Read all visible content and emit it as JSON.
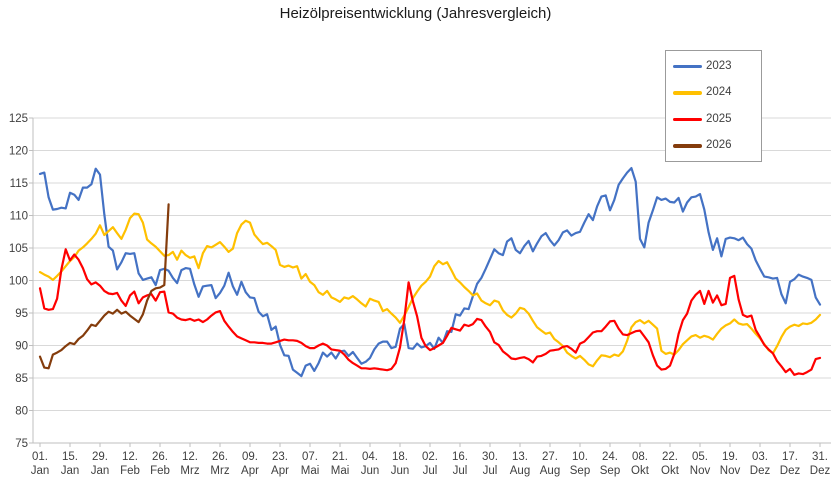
{
  "chart_data": {
    "type": "line",
    "title": "Heizölpreisentwicklung (Jahresvergleich)",
    "grid": true,
    "background": "#FFFFFF",
    "colors": {
      "gridline": "#D9D9D9",
      "axis": "#BFBFBF",
      "label": "#404040",
      "title": "#1A1A1A"
    },
    "y_axis": {
      "min": 75,
      "max": 125,
      "tick_step": 5,
      "ticks": [
        75,
        80,
        85,
        90,
        95,
        100,
        105,
        110,
        115,
        120,
        125
      ]
    },
    "x_axis": {
      "unit": "day_of_year",
      "range": [
        1,
        365
      ],
      "tick_labels": [
        {
          "day": 1,
          "top": "01.",
          "bottom": "Jan"
        },
        {
          "day": 15,
          "top": "15.",
          "bottom": "Jan"
        },
        {
          "day": 29,
          "top": "29.",
          "bottom": "Jan"
        },
        {
          "day": 43,
          "top": "12.",
          "bottom": "Feb"
        },
        {
          "day": 57,
          "top": "26.",
          "bottom": "Feb"
        },
        {
          "day": 71,
          "top": "12.",
          "bottom": "Mrz"
        },
        {
          "day": 85,
          "top": "26.",
          "bottom": "Mrz"
        },
        {
          "day": 99,
          "top": "09.",
          "bottom": "Apr"
        },
        {
          "day": 113,
          "top": "23.",
          "bottom": "Apr"
        },
        {
          "day": 127,
          "top": "07.",
          "bottom": "Mai"
        },
        {
          "day": 141,
          "top": "21.",
          "bottom": "Mai"
        },
        {
          "day": 155,
          "top": "04.",
          "bottom": "Jun"
        },
        {
          "day": 169,
          "top": "18.",
          "bottom": "Jun"
        },
        {
          "day": 183,
          "top": "02.",
          "bottom": "Jul"
        },
        {
          "day": 197,
          "top": "16.",
          "bottom": "Jul"
        },
        {
          "day": 211,
          "top": "30.",
          "bottom": "Jul"
        },
        {
          "day": 225,
          "top": "13.",
          "bottom": "Aug"
        },
        {
          "day": 239,
          "top": "27.",
          "bottom": "Aug"
        },
        {
          "day": 253,
          "top": "10.",
          "bottom": "Sep"
        },
        {
          "day": 267,
          "top": "24.",
          "bottom": "Sep"
        },
        {
          "day": 281,
          "top": "08.",
          "bottom": "Okt"
        },
        {
          "day": 295,
          "top": "22.",
          "bottom": "Okt"
        },
        {
          "day": 309,
          "top": "05.",
          "bottom": "Nov"
        },
        {
          "day": 323,
          "top": "19.",
          "bottom": "Nov"
        },
        {
          "day": 337,
          "top": "03.",
          "bottom": "Dez"
        },
        {
          "day": 351,
          "top": "17.",
          "bottom": "Dez"
        },
        {
          "day": 365,
          "top": "31.",
          "bottom": "Dez"
        }
      ]
    },
    "legend": {
      "position": "top-right",
      "entries": [
        {
          "label": "2023",
          "color": "#4472C4"
        },
        {
          "label": "2024",
          "color": "#FFC000"
        },
        {
          "label": "2025",
          "color": "#FF0000"
        },
        {
          "label": "2026",
          "color": "#843C0C"
        }
      ]
    },
    "series": [
      {
        "name": "2023",
        "color": "#4472C4",
        "start_day": 1,
        "day_step": 2,
        "values": [
          116.4,
          116.6,
          112.8,
          110.9,
          111,
          111.2,
          111.1,
          113.5,
          113.2,
          112.4,
          114.3,
          114.3,
          114.8,
          117.2,
          116.3,
          110.2,
          105.2,
          104.6,
          101.7,
          102.8,
          104.2,
          104.1,
          104.2,
          101.1,
          100.1,
          100.3,
          100.5,
          99.3,
          101.6,
          101.8,
          101.5,
          100.4,
          99.6,
          101.6,
          101.9,
          101.8,
          99.4,
          97.5,
          99.1,
          99.2,
          99.3,
          97.3,
          98.1,
          99.2,
          101.2,
          99.1,
          97.8,
          99.8,
          98.2,
          97.4,
          97.3,
          95.2,
          94.5,
          94.8,
          92.4,
          92.9,
          90.1,
          88.5,
          88.4,
          86.3,
          85.8,
          85.3,
          86.9,
          87.2,
          86.1,
          87.3,
          88.9,
          88.3,
          88.9,
          88,
          89.1,
          89.2,
          88.4,
          89,
          88.1,
          87.2,
          87.5,
          88.1,
          89.4,
          90.3,
          90.6,
          90.6,
          89.6,
          89.8,
          92.6,
          93.3,
          89.6,
          89.5,
          90.3,
          89.7,
          89.9,
          90.4,
          89.5,
          91.2,
          90.4,
          92.2,
          92.1,
          94.8,
          94.6,
          95.7,
          95.6,
          97.6,
          99.5,
          100.4,
          101.8,
          103.3,
          104.8,
          104.2,
          103.9,
          106,
          106.5,
          104.7,
          104.2,
          105.3,
          106.1,
          104.5,
          105.7,
          106.8,
          107.3,
          106.2,
          105.4,
          106.2,
          107.4,
          107.7,
          106.9,
          107.3,
          107.5,
          108.9,
          110.2,
          109.3,
          111.4,
          112.9,
          113.1,
          110.8,
          112.4,
          114.7,
          115.7,
          116.6,
          117.3,
          115.2,
          106.4,
          105.1,
          108.9,
          110.8,
          112.8,
          112.4,
          112.6,
          112.1,
          112,
          112.7,
          110.6,
          112,
          112.8,
          112.9,
          113.3,
          110.9,
          107.4,
          104.7,
          106.5,
          103.7,
          106.4,
          106.6,
          106.5,
          106.2,
          106.6,
          105.6,
          104.9,
          103.1,
          101.8,
          100.6,
          100.5,
          100.3,
          100.4,
          97.9,
          96.5,
          99.8,
          100.2,
          100.9,
          100.6,
          100.4,
          100.1,
          97.4,
          96.3
        ]
      },
      {
        "name": "2024",
        "color": "#FFC000",
        "start_day": 1,
        "day_step": 2,
        "values": [
          101.3,
          100.9,
          100.6,
          100.1,
          100.7,
          101.4,
          102.2,
          103,
          103.6,
          104.6,
          105.1,
          105.7,
          106.4,
          107.2,
          108.5,
          107,
          107.6,
          108.2,
          107.3,
          106.4,
          107.8,
          109.6,
          110.3,
          110.2,
          108.9,
          106.3,
          105.7,
          105.2,
          104.5,
          103.8,
          103.9,
          104.4,
          103.2,
          104.6,
          103.9,
          103.5,
          103.7,
          101.9,
          104.2,
          105.3,
          105.1,
          105.5,
          105.9,
          105.2,
          104.4,
          104.9,
          107.3,
          108.6,
          109.2,
          108.9,
          107.1,
          106.3,
          105.6,
          105.8,
          105.3,
          104.7,
          102.4,
          102.1,
          102.3,
          102,
          102.2,
          100.3,
          101,
          99.8,
          99.3,
          98.2,
          97.8,
          98.4,
          97.4,
          97.1,
          96.7,
          97.4,
          97.2,
          97.6,
          97.1,
          96.5,
          96,
          97.2,
          96.9,
          96.7,
          95.3,
          95.6,
          94.9,
          94.3,
          93.5,
          94.6,
          95.9,
          97.3,
          98.3,
          99.2,
          99.8,
          100.6,
          102.2,
          103,
          102.5,
          102.8,
          101.6,
          100.3,
          99.7,
          99,
          98.4,
          97.7,
          98,
          96.9,
          96.5,
          96.2,
          96.9,
          96.7,
          95.4,
          94.7,
          94.3,
          94.9,
          95.8,
          95.6,
          94.9,
          93.8,
          92.8,
          92.3,
          91.8,
          92,
          91,
          90.5,
          89.9,
          88.9,
          88.4,
          88,
          88.4,
          87.8,
          87.1,
          86.8,
          87.7,
          88.5,
          88.4,
          88.2,
          88.6,
          88.4,
          89.1,
          90.7,
          92.8,
          93.6,
          93.9,
          93.4,
          93.8,
          93.2,
          92.6,
          89.2,
          88.7,
          88.9,
          88.6,
          89.3,
          90.2,
          90.8,
          91.4,
          91.6,
          91.2,
          91.5,
          91.3,
          90.9,
          91.8,
          92.6,
          93.1,
          93.4,
          94,
          93.4,
          93.2,
          93.3,
          92.6,
          91.8,
          91.1,
          90.2,
          89.3,
          88.8,
          89.9,
          91.3,
          92.4,
          92.9,
          93.2,
          93,
          93.4,
          93.3,
          93.5,
          94,
          94.7
        ]
      },
      {
        "name": "2025",
        "color": "#FF0000",
        "start_day": 1,
        "day_step": 2,
        "values": [
          98.8,
          95.7,
          95.5,
          95.6,
          97.2,
          101.7,
          104.8,
          103.1,
          104,
          103.2,
          101.9,
          100.2,
          99.4,
          99.7,
          99.2,
          98.4,
          98,
          97.9,
          98.1,
          96.9,
          96.1,
          97.7,
          98.3,
          96.5,
          97.4,
          97.7,
          97.9,
          96.9,
          98.2,
          98.3,
          95.1,
          94.9,
          94.3,
          94,
          93.9,
          94.1,
          93.8,
          94,
          93.6,
          94,
          94.6,
          95.1,
          95.3,
          93.8,
          92.9,
          92.1,
          91.4,
          91.1,
          90.8,
          90.5,
          90.5,
          90.4,
          90.4,
          90.3,
          90.3,
          90.5,
          90.7,
          90.9,
          90.8,
          90.8,
          90.7,
          90.4,
          89.9,
          89.6,
          89.6,
          90,
          90.3,
          90,
          89.4,
          89.3,
          89.2,
          88.6,
          87.8,
          87.3,
          86.9,
          86.5,
          86.5,
          86.4,
          86.5,
          86.4,
          86.3,
          86.2,
          86.4,
          87.3,
          89.7,
          94,
          99.7,
          96.8,
          94.5,
          91.2,
          89.9,
          89.3,
          89.6,
          90,
          90.4,
          91.5,
          92.7,
          92.5,
          92.3,
          93.2,
          93,
          93.3,
          94.1,
          93.9,
          92.9,
          92.1,
          90.5,
          90.1,
          89.1,
          88.6,
          88,
          87.9,
          88.1,
          88.2,
          87.9,
          87.4,
          88.3,
          88.4,
          88.7,
          89.2,
          89.3,
          89.4,
          89.8,
          89.9,
          89.5,
          88.9,
          90.3,
          90.6,
          91.3,
          92,
          92.2,
          92.2,
          92.9,
          93.7,
          93.8,
          92.6,
          91.7,
          91.6,
          91.9,
          92.2,
          92.3,
          91.4,
          90.5,
          88.5,
          86.9,
          86.3,
          86.4,
          86.9,
          88.7,
          91.8,
          93.9,
          94.9,
          96.9,
          97.8,
          98.4,
          96.4,
          98.4,
          96.6,
          97.7,
          96.2,
          96.4,
          100.4,
          100.7,
          97.1,
          94.7,
          94.4,
          94.6,
          92.4,
          91.3,
          90.1,
          89.4,
          88.8,
          87.6,
          86.8,
          85.9,
          86.4,
          85.5,
          85.7,
          85.6,
          85.9,
          86.3,
          87.9,
          88.1
        ]
      },
      {
        "name": "2026",
        "color": "#843C0C",
        "start_day": 1,
        "day_step": 2,
        "values": [
          88.3,
          86.6,
          86.5,
          88.6,
          88.9,
          89.3,
          89.9,
          90.4,
          90.2,
          91,
          91.5,
          92.3,
          93.2,
          93,
          93.8,
          94.6,
          95.2,
          94.9,
          95.5,
          94.9,
          95.2,
          94.6,
          94.1,
          93.6,
          94.8,
          96.9,
          98.4,
          98.8,
          98.9,
          99.3,
          111.7
        ]
      }
    ]
  }
}
